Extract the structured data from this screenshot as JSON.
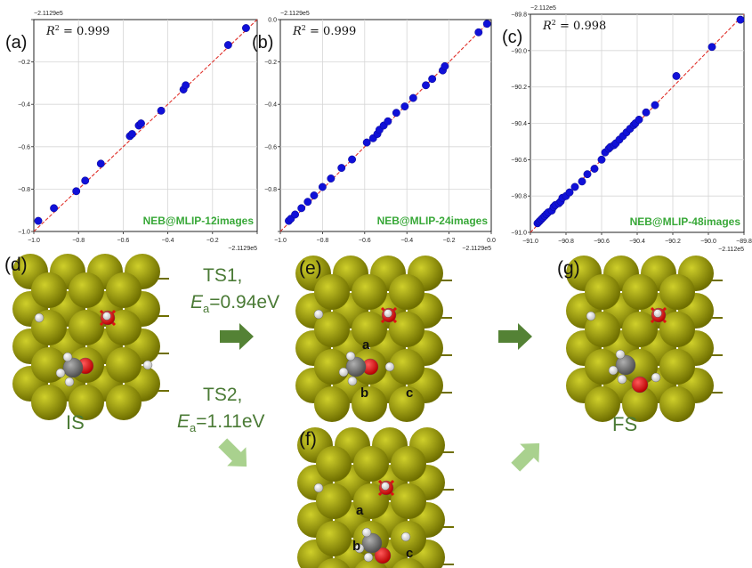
{
  "chart_data": [
    {
      "type": "scatter",
      "panel": "(a)",
      "r2": "0.999",
      "label": "NEB@MLIP-12images",
      "offset_text_top": "−2.1129e5",
      "offset_text_right": "−2.1129e5",
      "xlim": [
        -1.0,
        0.0
      ],
      "ylim": [
        -1.0,
        0.0
      ],
      "x_ticks": [
        "−1.0",
        "−0.8",
        "−0.6",
        "−0.4",
        "−0.2",
        ""
      ],
      "y_ticks": [
        "−1.0",
        "−0.8",
        "−0.6",
        "−0.4",
        "−0.2",
        ""
      ],
      "grid": true,
      "marker_color": "#1010d8",
      "fit_line_color": "#e0302a",
      "points": [
        [
          -0.98,
          -0.95
        ],
        [
          -0.91,
          -0.89
        ],
        [
          -0.81,
          -0.81
        ],
        [
          -0.77,
          -0.76
        ],
        [
          -0.7,
          -0.68
        ],
        [
          -0.57,
          -0.55
        ],
        [
          -0.56,
          -0.54
        ],
        [
          -0.53,
          -0.5
        ],
        [
          -0.52,
          -0.49
        ],
        [
          -0.43,
          -0.43
        ],
        [
          -0.33,
          -0.33
        ],
        [
          -0.32,
          -0.31
        ],
        [
          -0.13,
          -0.12
        ],
        [
          -0.05,
          -0.04
        ]
      ]
    },
    {
      "type": "scatter",
      "panel": "(b)",
      "r2": "0.999",
      "label": "NEB@MLIP-24images",
      "offset_text_top": "−2.1129e5",
      "offset_text_right": "−2.1129e5",
      "xlim": [
        -1.0,
        0.0
      ],
      "ylim": [
        -1.0,
        0.0
      ],
      "x_ticks": [
        "−1.0",
        "−0.8",
        "−0.6",
        "−0.4",
        "−0.2",
        "0.0"
      ],
      "y_ticks": [
        "",
        "−0.8",
        "−0.6",
        "−0.4",
        "−0.2",
        "0.0"
      ],
      "grid": true,
      "marker_color": "#1010d8",
      "fit_line_color": "#e0302a",
      "points": [
        [
          -0.96,
          -0.95
        ],
        [
          -0.95,
          -0.94
        ],
        [
          -0.93,
          -0.92
        ],
        [
          -0.9,
          -0.89
        ],
        [
          -0.87,
          -0.86
        ],
        [
          -0.84,
          -0.83
        ],
        [
          -0.8,
          -0.79
        ],
        [
          -0.76,
          -0.75
        ],
        [
          -0.71,
          -0.7
        ],
        [
          -0.66,
          -0.66
        ],
        [
          -0.59,
          -0.58
        ],
        [
          -0.56,
          -0.56
        ],
        [
          -0.54,
          -0.54
        ],
        [
          -0.53,
          -0.52
        ],
        [
          -0.51,
          -0.5
        ],
        [
          -0.49,
          -0.48
        ],
        [
          -0.45,
          -0.44
        ],
        [
          -0.41,
          -0.41
        ],
        [
          -0.37,
          -0.37
        ],
        [
          -0.31,
          -0.31
        ],
        [
          -0.28,
          -0.28
        ],
        [
          -0.23,
          -0.24
        ],
        [
          -0.22,
          -0.22
        ],
        [
          -0.06,
          -0.06
        ],
        [
          -0.02,
          -0.02
        ]
      ]
    },
    {
      "type": "scatter",
      "panel": "(c)",
      "r2": "0.998",
      "label": "NEB@MLIP-48images",
      "offset_text_top": "−2.112e5",
      "offset_text_right": "−2.112e5",
      "xlim": [
        -91.0,
        -89.8
      ],
      "ylim": [
        -91.0,
        -89.8
      ],
      "x_ticks": [
        "−91.0",
        "−90.8",
        "−90.6",
        "−90.4",
        "−90.2",
        "−90.0",
        "−89.8"
      ],
      "y_ticks": [
        "−91.0",
        "−90.8",
        "−90.6",
        "−90.4",
        "−90.2",
        "−90.0",
        "−89.8"
      ],
      "grid": true,
      "marker_color": "#1010d8",
      "fit_line_color": "#e0302a",
      "points": [
        [
          -90.96,
          -90.95
        ],
        [
          -90.95,
          -90.94
        ],
        [
          -90.94,
          -90.93
        ],
        [
          -90.93,
          -90.92
        ],
        [
          -90.92,
          -90.91
        ],
        [
          -90.91,
          -90.9
        ],
        [
          -90.9,
          -90.89
        ],
        [
          -90.88,
          -90.88
        ],
        [
          -90.87,
          -90.86
        ],
        [
          -90.86,
          -90.85
        ],
        [
          -90.84,
          -90.84
        ],
        [
          -90.83,
          -90.83
        ],
        [
          -90.82,
          -90.81
        ],
        [
          -90.8,
          -90.8
        ],
        [
          -90.78,
          -90.78
        ],
        [
          -90.75,
          -90.75
        ],
        [
          -90.71,
          -90.72
        ],
        [
          -90.68,
          -90.68
        ],
        [
          -90.64,
          -90.65
        ],
        [
          -90.6,
          -90.6
        ],
        [
          -90.58,
          -90.56
        ],
        [
          -90.56,
          -90.54
        ],
        [
          -90.55,
          -90.53
        ],
        [
          -90.53,
          -90.52
        ],
        [
          -90.52,
          -90.51
        ],
        [
          -90.5,
          -90.49
        ],
        [
          -90.48,
          -90.47
        ],
        [
          -90.46,
          -90.45
        ],
        [
          -90.44,
          -90.43
        ],
        [
          -90.42,
          -90.41
        ],
        [
          -90.41,
          -90.4
        ],
        [
          -90.39,
          -90.38
        ],
        [
          -90.35,
          -90.34
        ],
        [
          -90.3,
          -90.3
        ],
        [
          -90.18,
          -90.14
        ],
        [
          -89.98,
          -89.98
        ],
        [
          -89.82,
          -89.83
        ]
      ]
    }
  ],
  "scheme": {
    "panel_d": "(d)",
    "panel_e": "(e)",
    "panel_f": "(f)",
    "panel_g": "(g)",
    "is_label": "IS",
    "fs_label": "FS",
    "ts1_title": "TS1,",
    "ts1_sym": "E",
    "ts1_sub": "a",
    "ts1_val": "=0.94eV",
    "ts2_title": "TS2,",
    "ts2_sym": "E",
    "ts2_sub": "a",
    "ts2_val": "=1.11eV",
    "site_a": "a",
    "site_b": "b",
    "site_c": "c",
    "text_color": "#4a7a35",
    "arrow_dark": "#548235",
    "arrow_light": "#a9d18e",
    "metal_color": "#9a9a00",
    "oxygen_color": "#e01010",
    "carbon_color": "#808080",
    "hydrogen_color": "#f4f4f4"
  }
}
